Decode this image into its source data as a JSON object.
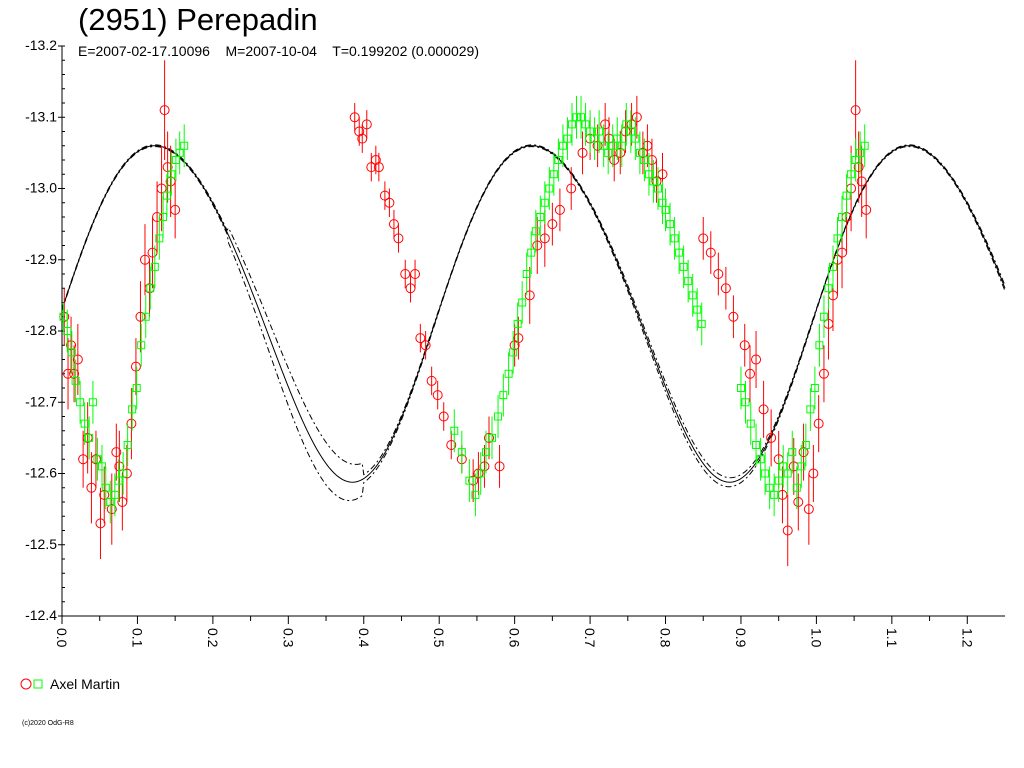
{
  "chart_data": {
    "type": "scatter",
    "title": "(2951) Perepadin",
    "subtitle": "E=2007-02-17.10096    M=2007-10-04    T=0.199202 (0.000029)",
    "xlabel": "",
    "ylabel": "",
    "xlim": [
      0,
      1.25
    ],
    "ylim": [
      -13.2,
      -12.4
    ],
    "y_inverted": true,
    "xticks": [
      "0.0",
      "0.1",
      "0.2",
      "0.3",
      "0.4",
      "0.5",
      "0.6",
      "0.7",
      "0.8",
      "0.9",
      "1.0",
      "1.1",
      "1.2"
    ],
    "yticks": [
      "-13.2",
      "-13.1",
      "-13.0",
      "-12.9",
      "-12.8",
      "-12.7",
      "-12.6",
      "-12.5",
      "-12.4"
    ],
    "grid": false,
    "legend": {
      "placement": "bottom-left",
      "entries": [
        "Axel Martin"
      ]
    },
    "copyright": "(c)2020 OdG-R8",
    "fit": {
      "mean": -12.835,
      "components": [
        {
          "n": 1,
          "cos": 0.0,
          "sin": 0.0
        },
        {
          "n": 2,
          "cos": 0.015,
          "sin": -0.235
        },
        {
          "n": 4,
          "cos": -0.01,
          "sin": -0.01
        }
      ],
      "band_offset": 0.03,
      "band_phase_max": 0.34,
      "band_phase_width": 0.1
    },
    "series": [
      {
        "name": "Axel Martin",
        "marker": "circle",
        "color": "#ff0000",
        "points": [
          [
            0.003,
            -12.82,
            0.04
          ],
          [
            0.008,
            -12.74,
            0.05
          ],
          [
            0.012,
            -12.78,
            0.04
          ],
          [
            0.016,
            -12.74,
            0.04
          ],
          [
            0.021,
            -12.76,
            0.05
          ],
          [
            0.028,
            -12.62,
            0.04
          ],
          [
            0.034,
            -12.65,
            0.05
          ],
          [
            0.039,
            -12.58,
            0.05
          ],
          [
            0.045,
            -12.62,
            0.04
          ],
          [
            0.051,
            -12.53,
            0.05
          ],
          [
            0.056,
            -12.57,
            0.04
          ],
          [
            0.066,
            -12.55,
            0.05
          ],
          [
            0.072,
            -12.63,
            0.04
          ],
          [
            0.076,
            -12.61,
            0.05
          ],
          [
            0.08,
            -12.56,
            0.04
          ],
          [
            0.086,
            -12.6,
            0.04
          ],
          [
            0.092,
            -12.67,
            0.05
          ],
          [
            0.098,
            -12.75,
            0.04
          ],
          [
            0.104,
            -12.82,
            0.05
          ],
          [
            0.11,
            -12.9,
            0.05
          ],
          [
            0.116,
            -12.86,
            0.04
          ],
          [
            0.12,
            -12.91,
            0.05
          ],
          [
            0.126,
            -12.96,
            0.05
          ],
          [
            0.132,
            -13.0,
            0.06
          ],
          [
            0.136,
            -13.11,
            0.07
          ],
          [
            0.14,
            -13.03,
            0.05
          ],
          [
            0.144,
            -13.01,
            0.05
          ],
          [
            0.15,
            -12.97,
            0.04
          ],
          [
            0.388,
            -13.1,
            0.02
          ],
          [
            0.394,
            -13.08,
            0.02
          ],
          [
            0.398,
            -13.07,
            0.02
          ],
          [
            0.404,
            -13.09,
            0.02
          ],
          [
            0.41,
            -13.03,
            0.02
          ],
          [
            0.416,
            -13.04,
            0.02
          ],
          [
            0.42,
            -13.03,
            0.02
          ],
          [
            0.428,
            -12.99,
            0.02
          ],
          [
            0.434,
            -12.98,
            0.02
          ],
          [
            0.44,
            -12.95,
            0.02
          ],
          [
            0.446,
            -12.93,
            0.02
          ],
          [
            0.455,
            -12.88,
            0.02
          ],
          [
            0.462,
            -12.86,
            0.02
          ],
          [
            0.468,
            -12.88,
            0.02
          ],
          [
            0.475,
            -12.79,
            0.02
          ],
          [
            0.482,
            -12.78,
            0.02
          ],
          [
            0.49,
            -12.73,
            0.02
          ],
          [
            0.498,
            -12.71,
            0.02
          ],
          [
            0.506,
            -12.68,
            0.02
          ],
          [
            0.516,
            -12.64,
            0.02
          ],
          [
            0.53,
            -12.62,
            0.02
          ],
          [
            0.545,
            -12.59,
            0.03
          ],
          [
            0.552,
            -12.6,
            0.03
          ],
          [
            0.56,
            -12.61,
            0.03
          ],
          [
            0.566,
            -12.65,
            0.03
          ],
          [
            0.58,
            -12.61,
            0.03
          ],
          [
            0.6,
            -12.78,
            0.03
          ],
          [
            0.605,
            -12.79,
            0.03
          ],
          [
            0.62,
            -12.85,
            0.04
          ],
          [
            0.63,
            -12.92,
            0.04
          ],
          [
            0.64,
            -12.93,
            0.04
          ],
          [
            0.65,
            -12.95,
            0.03
          ],
          [
            0.66,
            -12.97,
            0.03
          ],
          [
            0.675,
            -13.0,
            0.03
          ],
          [
            0.69,
            -13.05,
            0.03
          ],
          [
            0.7,
            -13.07,
            0.03
          ],
          [
            0.71,
            -13.06,
            0.03
          ],
          [
            0.72,
            -13.09,
            0.03
          ],
          [
            0.725,
            -13.07,
            0.03
          ],
          [
            0.732,
            -13.04,
            0.03
          ],
          [
            0.74,
            -13.05,
            0.03
          ],
          [
            0.747,
            -13.08,
            0.03
          ],
          [
            0.755,
            -13.09,
            0.03
          ],
          [
            0.762,
            -13.1,
            0.03
          ],
          [
            0.77,
            -13.05,
            0.03
          ],
          [
            0.776,
            -13.06,
            0.03
          ],
          [
            0.782,
            -13.04,
            0.03
          ],
          [
            0.788,
            -13.01,
            0.03
          ],
          [
            0.796,
            -13.02,
            0.03
          ],
          [
            0.85,
            -12.93,
            0.03
          ],
          [
            0.86,
            -12.91,
            0.03
          ],
          [
            0.87,
            -12.88,
            0.03
          ],
          [
            0.88,
            -12.86,
            0.03
          ],
          [
            0.89,
            -12.82,
            0.03
          ],
          [
            0.905,
            -12.78,
            0.03
          ],
          [
            0.912,
            -12.74,
            0.04
          ],
          [
            0.92,
            -12.76,
            0.04
          ],
          [
            0.93,
            -12.69,
            0.04
          ],
          [
            0.94,
            -12.65,
            0.04
          ],
          [
            0.95,
            -12.62,
            0.04
          ],
          [
            0.955,
            -12.57,
            0.04
          ],
          [
            0.962,
            -12.52,
            0.05
          ],
          [
            0.97,
            -12.61,
            0.04
          ],
          [
            0.976,
            -12.56,
            0.04
          ],
          [
            0.983,
            -12.63,
            0.04
          ],
          [
            0.99,
            -12.55,
            0.05
          ],
          [
            0.996,
            -12.6,
            0.04
          ],
          [
            1.003,
            -12.67,
            0.04
          ],
          [
            1.01,
            -12.74,
            0.04
          ],
          [
            1.016,
            -12.81,
            0.05
          ],
          [
            1.022,
            -12.85,
            0.05
          ],
          [
            1.028,
            -12.9,
            0.05
          ],
          [
            1.034,
            -12.91,
            0.05
          ],
          [
            1.04,
            -12.96,
            0.05
          ],
          [
            1.046,
            -13.0,
            0.06
          ],
          [
            1.052,
            -13.11,
            0.07
          ],
          [
            1.056,
            -13.03,
            0.05
          ],
          [
            1.06,
            -13.01,
            0.05
          ],
          [
            1.066,
            -12.97,
            0.04
          ]
        ]
      },
      {
        "name": "Axel Martin",
        "marker": "square",
        "color": "#00ff00",
        "points": [
          [
            0.002,
            -12.82,
            0.02
          ],
          [
            0.007,
            -12.8,
            0.03
          ],
          [
            0.013,
            -12.77,
            0.03
          ],
          [
            0.018,
            -12.73,
            0.03
          ],
          [
            0.024,
            -12.7,
            0.03
          ],
          [
            0.03,
            -12.67,
            0.03
          ],
          [
            0.036,
            -12.65,
            0.03
          ],
          [
            0.041,
            -12.7,
            0.03
          ],
          [
            0.047,
            -12.62,
            0.03
          ],
          [
            0.053,
            -12.61,
            0.03
          ],
          [
            0.058,
            -12.58,
            0.03
          ],
          [
            0.064,
            -12.56,
            0.03
          ],
          [
            0.07,
            -12.57,
            0.03
          ],
          [
            0.075,
            -12.59,
            0.03
          ],
          [
            0.081,
            -12.6,
            0.03
          ],
          [
            0.087,
            -12.64,
            0.03
          ],
          [
            0.093,
            -12.69,
            0.03
          ],
          [
            0.099,
            -12.72,
            0.03
          ],
          [
            0.105,
            -12.78,
            0.03
          ],
          [
            0.111,
            -12.82,
            0.03
          ],
          [
            0.117,
            -12.86,
            0.03
          ],
          [
            0.123,
            -12.89,
            0.03
          ],
          [
            0.129,
            -12.93,
            0.03
          ],
          [
            0.134,
            -12.96,
            0.03
          ],
          [
            0.139,
            -12.99,
            0.03
          ],
          [
            0.145,
            -13.02,
            0.03
          ],
          [
            0.151,
            -13.04,
            0.03
          ],
          [
            0.156,
            -13.05,
            0.03
          ],
          [
            0.162,
            -13.06,
            0.03
          ],
          [
            0.52,
            -12.66,
            0.03
          ],
          [
            0.53,
            -12.63,
            0.03
          ],
          [
            0.54,
            -12.59,
            0.03
          ],
          [
            0.548,
            -12.57,
            0.03
          ],
          [
            0.555,
            -12.6,
            0.03
          ],
          [
            0.562,
            -12.63,
            0.03
          ],
          [
            0.57,
            -12.65,
            0.03
          ],
          [
            0.578,
            -12.68,
            0.03
          ],
          [
            0.585,
            -12.71,
            0.03
          ],
          [
            0.592,
            -12.74,
            0.03
          ],
          [
            0.598,
            -12.77,
            0.03
          ],
          [
            0.604,
            -12.81,
            0.03
          ],
          [
            0.61,
            -12.84,
            0.03
          ],
          [
            0.616,
            -12.88,
            0.03
          ],
          [
            0.622,
            -12.91,
            0.03
          ],
          [
            0.628,
            -12.94,
            0.03
          ],
          [
            0.634,
            -12.96,
            0.03
          ],
          [
            0.64,
            -12.98,
            0.03
          ],
          [
            0.646,
            -13.0,
            0.03
          ],
          [
            0.652,
            -13.02,
            0.03
          ],
          [
            0.658,
            -13.04,
            0.03
          ],
          [
            0.664,
            -13.06,
            0.03
          ],
          [
            0.67,
            -13.07,
            0.03
          ],
          [
            0.676,
            -13.09,
            0.03
          ],
          [
            0.682,
            -13.1,
            0.03
          ],
          [
            0.688,
            -13.1,
            0.03
          ],
          [
            0.694,
            -13.09,
            0.03
          ],
          [
            0.7,
            -13.08,
            0.03
          ],
          [
            0.706,
            -13.07,
            0.03
          ],
          [
            0.712,
            -13.08,
            0.03
          ],
          [
            0.718,
            -13.06,
            0.03
          ],
          [
            0.724,
            -13.05,
            0.03
          ],
          [
            0.73,
            -13.06,
            0.03
          ],
          [
            0.736,
            -13.07,
            0.03
          ],
          [
            0.742,
            -13.06,
            0.03
          ],
          [
            0.748,
            -13.09,
            0.03
          ],
          [
            0.754,
            -13.08,
            0.03
          ],
          [
            0.76,
            -13.07,
            0.03
          ],
          [
            0.766,
            -13.05,
            0.03
          ],
          [
            0.772,
            -13.04,
            0.03
          ],
          [
            0.778,
            -13.02,
            0.03
          ],
          [
            0.784,
            -13.01,
            0.03
          ],
          [
            0.79,
            -13.0,
            0.03
          ],
          [
            0.796,
            -12.98,
            0.03
          ],
          [
            0.8,
            -12.97,
            0.03
          ],
          [
            0.806,
            -12.95,
            0.03
          ],
          [
            0.812,
            -12.93,
            0.03
          ],
          [
            0.818,
            -12.91,
            0.03
          ],
          [
            0.824,
            -12.89,
            0.03
          ],
          [
            0.83,
            -12.87,
            0.03
          ],
          [
            0.836,
            -12.85,
            0.03
          ],
          [
            0.842,
            -12.83,
            0.03
          ],
          [
            0.848,
            -12.81,
            0.03
          ],
          [
            0.9,
            -12.72,
            0.03
          ],
          [
            0.906,
            -12.7,
            0.03
          ],
          [
            0.913,
            -12.67,
            0.03
          ],
          [
            0.92,
            -12.64,
            0.03
          ],
          [
            0.926,
            -12.62,
            0.03
          ],
          [
            0.932,
            -12.6,
            0.03
          ],
          [
            0.938,
            -12.58,
            0.03
          ],
          [
            0.944,
            -12.57,
            0.03
          ],
          [
            0.95,
            -12.59,
            0.03
          ],
          [
            0.956,
            -12.61,
            0.03
          ],
          [
            0.962,
            -12.6,
            0.03
          ],
          [
            0.968,
            -12.63,
            0.03
          ],
          [
            0.974,
            -12.58,
            0.03
          ],
          [
            0.98,
            -12.61,
            0.03
          ],
          [
            0.986,
            -12.64,
            0.03
          ],
          [
            0.992,
            -12.69,
            0.03
          ],
          [
            0.998,
            -12.72,
            0.03
          ],
          [
            1.004,
            -12.78,
            0.03
          ],
          [
            1.01,
            -12.82,
            0.03
          ],
          [
            1.016,
            -12.86,
            0.03
          ],
          [
            1.022,
            -12.89,
            0.03
          ],
          [
            1.028,
            -12.93,
            0.03
          ],
          [
            1.034,
            -12.96,
            0.03
          ],
          [
            1.04,
            -12.99,
            0.03
          ],
          [
            1.046,
            -13.02,
            0.03
          ],
          [
            1.052,
            -13.04,
            0.03
          ],
          [
            1.058,
            -13.05,
            0.03
          ],
          [
            1.064,
            -13.06,
            0.03
          ]
        ]
      }
    ]
  }
}
